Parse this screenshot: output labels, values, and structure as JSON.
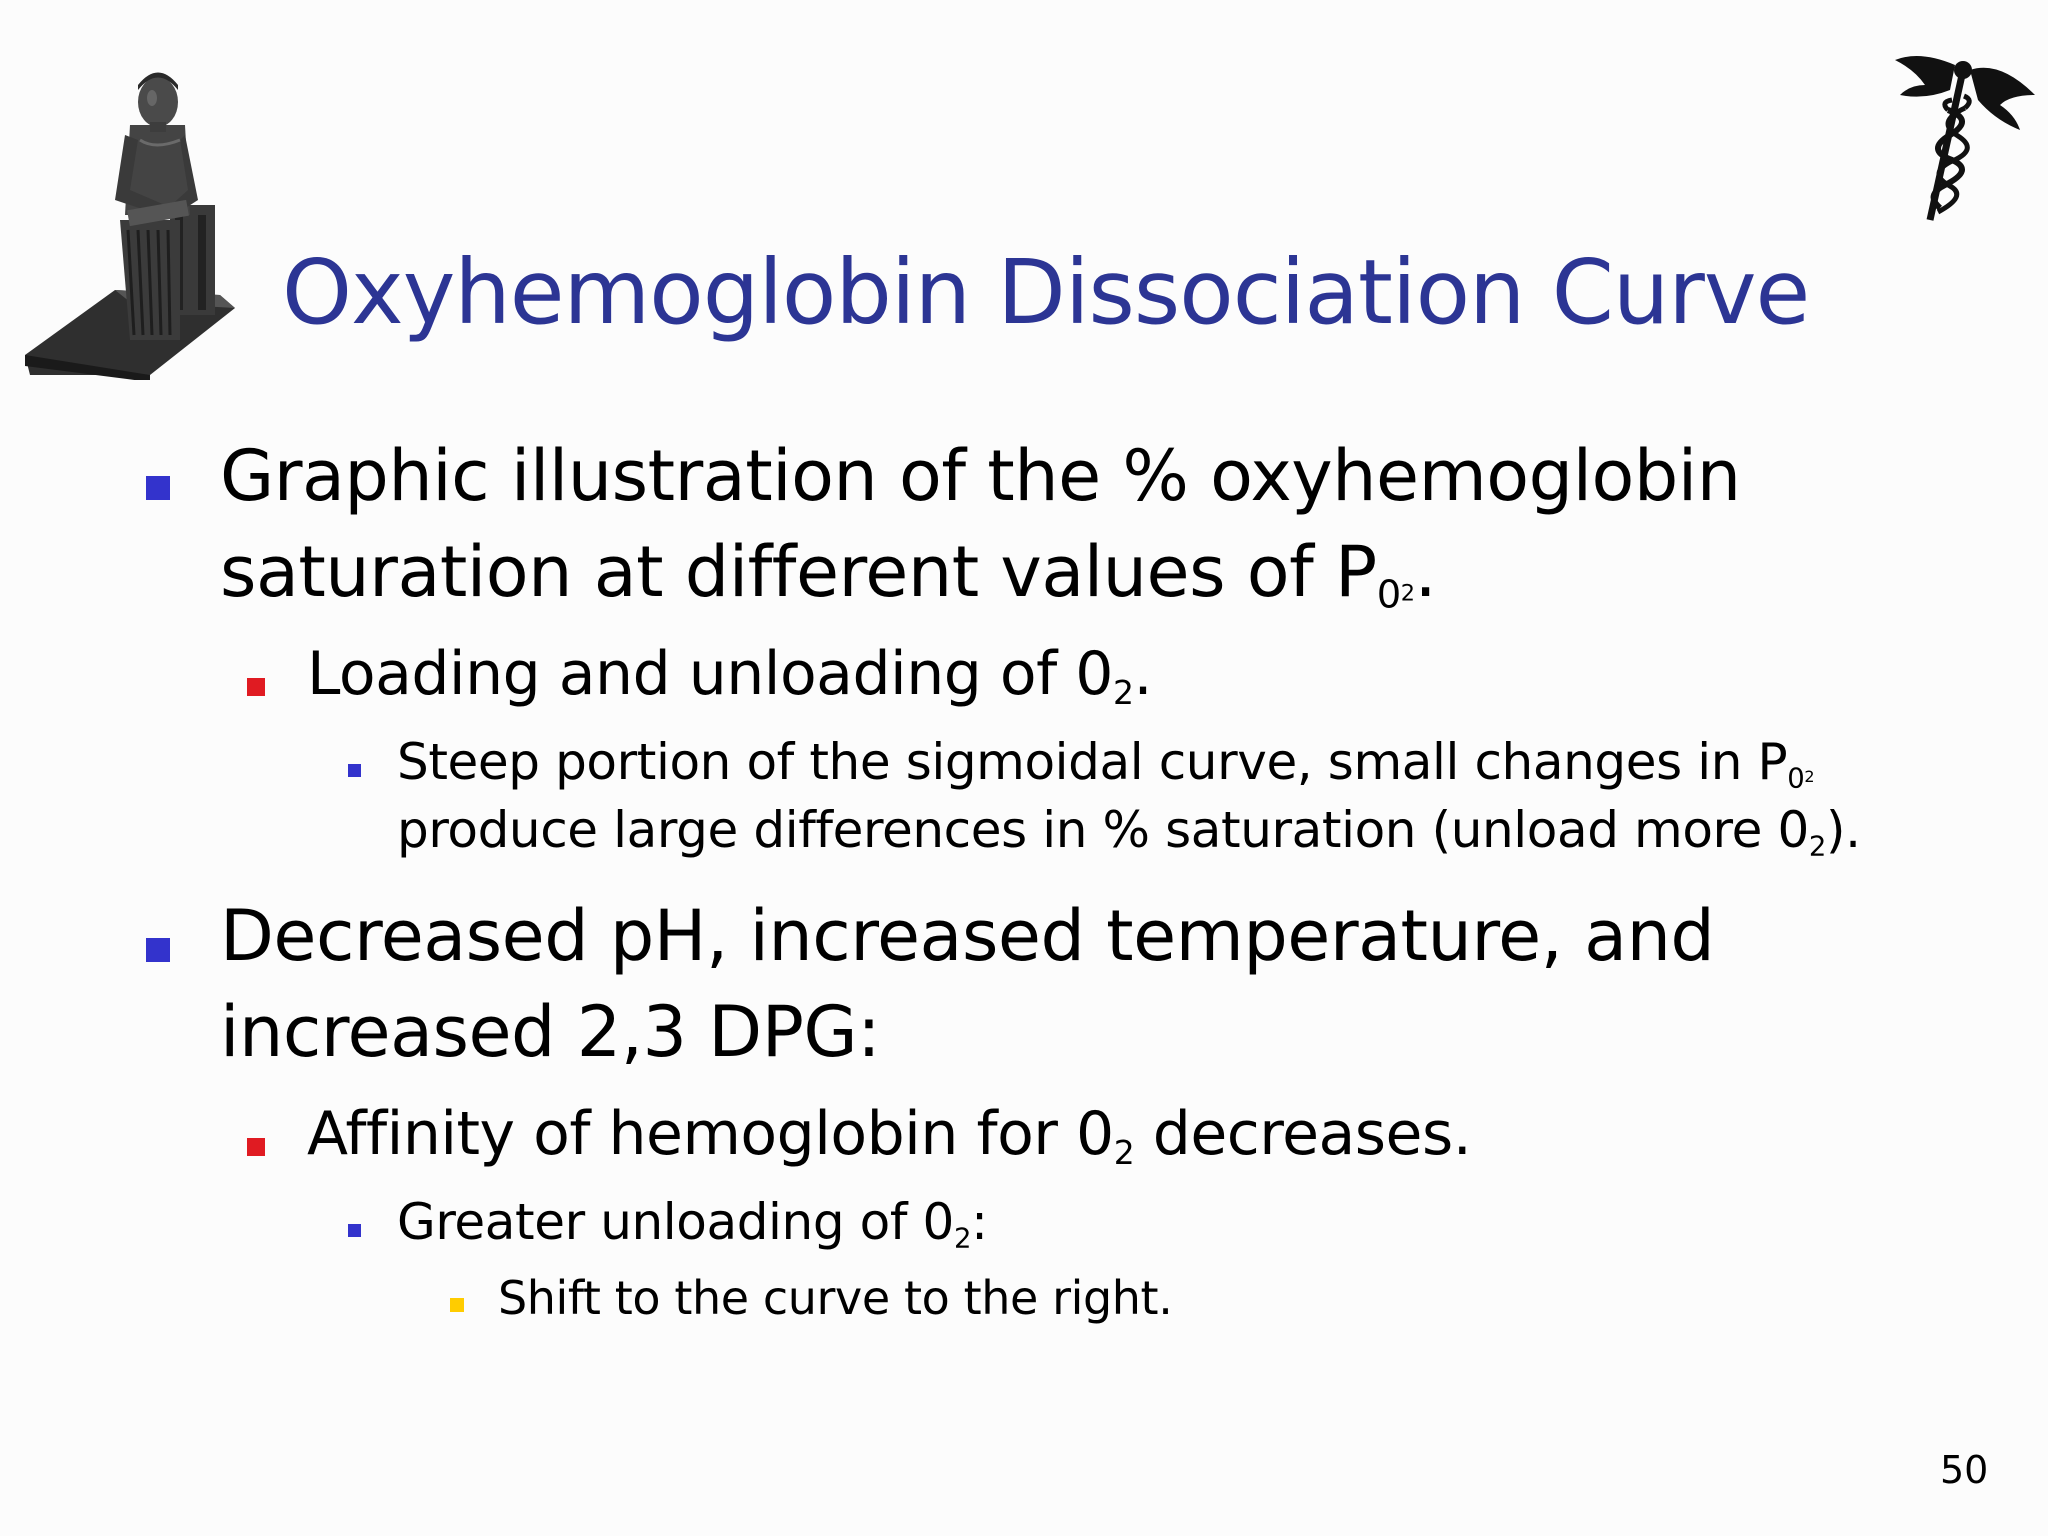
{
  "slide": {
    "title": "Oxyhemoglobin Dissociation Curve",
    "page_number": "50",
    "colors": {
      "title": "#2c3594",
      "bullet_level1": "#3333cc",
      "bullet_level2": "#e01b22",
      "bullet_level3": "#3333cc",
      "bullet_level4": "#ffcc00"
    },
    "images": {
      "left": "seated-scribe-statue",
      "right": "caduceus-symbol"
    },
    "bullets": [
      {
        "level": 1,
        "line1": "Graphic illustration of the % oxyhemoglobin",
        "line2_pre": "saturation at different values of P",
        "line2_sub": "0",
        "line2_sub2": "2",
        "line2_post": "."
      },
      {
        "level": 2,
        "pre": "Loading and unloading of 0",
        "sub": "2",
        "post": "."
      },
      {
        "level": 3,
        "line1_pre": "Steep portion of the sigmoidal curve, small changes in P",
        "line1_sub": "0",
        "line1_sub2": "2",
        "line2_pre": "produce large differences in % saturation (unload more 0",
        "line2_sub": "2",
        "line2_post": ")."
      },
      {
        "level": 1,
        "line1": "Decreased pH, increased temperature, and",
        "line2": "increased 2,3 DPG:"
      },
      {
        "level": 2,
        "pre": "Affinity of hemoglobin for 0",
        "sub": "2",
        "post": " decreases."
      },
      {
        "level": 3,
        "pre": "Greater unloading of 0",
        "sub": "2",
        "post": ":"
      },
      {
        "level": 4,
        "text": "Shift to the curve to the right."
      }
    ]
  }
}
